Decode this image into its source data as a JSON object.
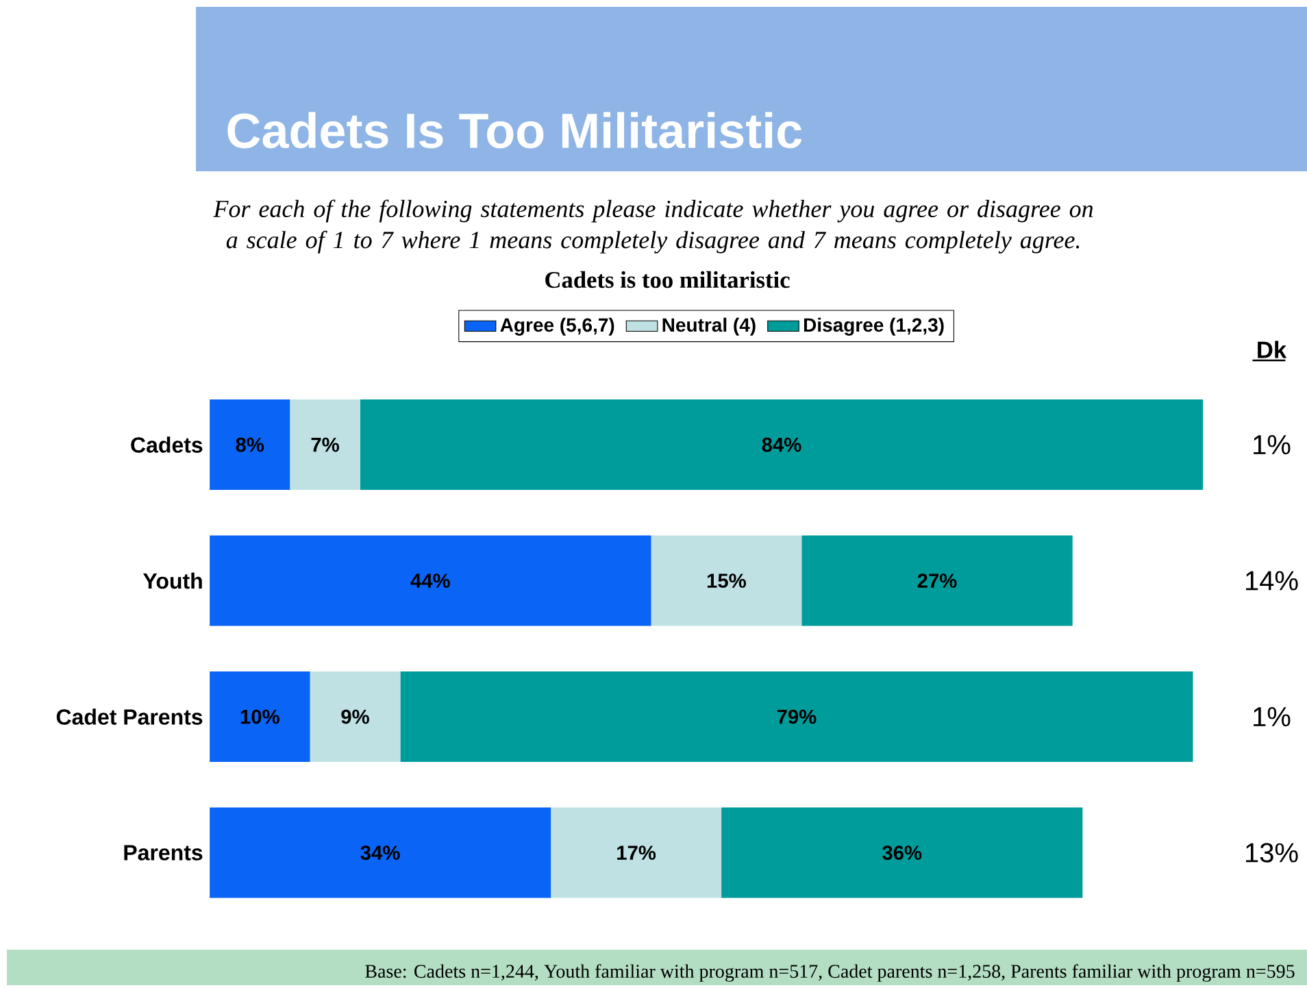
{
  "chart_data": {
    "type": "bar",
    "orientation": "horizontal",
    "stacked": true,
    "title": "Cadets Is Too Militaristic",
    "subtitle": "Cadets is too militaristic",
    "categories": [
      "Cadets",
      "Youth",
      "Cadet Parents",
      "Parents"
    ],
    "series": [
      {
        "name": "Agree (5,6,7)",
        "color": "#0a64f5",
        "values": [
          8,
          44,
          10,
          34
        ],
        "value_labels": [
          "8%",
          "44%",
          "10%",
          "34%"
        ]
      },
      {
        "name": "Neutral (4)",
        "color": "#bfe1e4",
        "values": [
          7,
          15,
          9,
          17
        ],
        "value_labels": [
          "7%",
          "15%",
          "9%",
          "17%"
        ]
      },
      {
        "name": "Disagree (1,2,3)",
        "color": "#009c9c",
        "values": [
          84,
          27,
          79,
          36
        ],
        "value_labels": [
          "84%",
          "27%",
          "79%",
          "36%"
        ]
      }
    ],
    "tick_labels": "y",
    "legend": "top",
    "annotations": [
      "For each of the following statements please indicate whether you agree or disagree on a scale of 1 to 7 where 1 means completely disagree and 7 means completely agree.",
      "Dk",
      "1%",
      "14%",
      "1%",
      "13%",
      "Base: Cadets n=1,244, Youth familiar with program  n=517, Cadet parents n=1,258, Parents familiar with program n=595"
    ]
  }
}
